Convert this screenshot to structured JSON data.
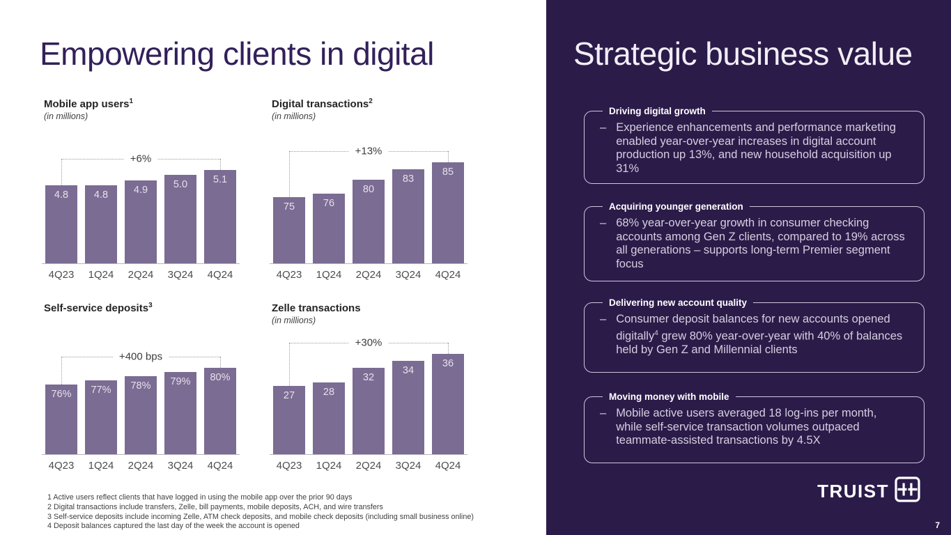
{
  "slide": {
    "left_title": "Empowering clients in digital",
    "right_title": "Strategic business value",
    "logo_text": "TRUIST",
    "page_number": "7"
  },
  "colors": {
    "panel_bg": "#2b1b49",
    "bar": "#7b6c93",
    "left_title": "#32205a",
    "box_border": "#cfc6dd",
    "box_text": "#d5cfdf",
    "bar_label": "#e6e0ec"
  },
  "chart_data": [
    {
      "type": "bar",
      "title": "Mobile app users",
      "title_sup": "1",
      "subtitle": "(in millions)",
      "annotation": "+6%",
      "categories": [
        "4Q23",
        "1Q24",
        "2Q24",
        "3Q24",
        "4Q24"
      ],
      "values": [
        4.8,
        4.8,
        4.9,
        5.0,
        5.1
      ],
      "value_labels": [
        "4.8",
        "4.8",
        "4.9",
        "5.0",
        "5.1"
      ],
      "ylim": [
        0,
        5.5
      ],
      "axis_truncated": true
    },
    {
      "type": "bar",
      "title": "Digital transactions",
      "title_sup": "2",
      "subtitle": "(in millions)",
      "annotation": "+13%",
      "categories": [
        "4Q23",
        "1Q24",
        "2Q24",
        "3Q24",
        "4Q24"
      ],
      "values": [
        75,
        76,
        80,
        83,
        85
      ],
      "value_labels": [
        "75",
        "76",
        "80",
        "83",
        "85"
      ],
      "ylim": [
        0,
        90
      ],
      "axis_truncated": true
    },
    {
      "type": "bar",
      "title": "Self-service deposits",
      "title_sup": "3",
      "subtitle": "",
      "annotation": "+400 bps",
      "categories": [
        "4Q23",
        "1Q24",
        "2Q24",
        "3Q24",
        "4Q24"
      ],
      "values": [
        76,
        77,
        78,
        79,
        80
      ],
      "value_labels": [
        "76%",
        "77%",
        "78%",
        "79%",
        "80%"
      ],
      "ylim": [
        0,
        85
      ],
      "axis_truncated": true
    },
    {
      "type": "bar",
      "title": "Zelle transactions",
      "title_sup": "",
      "subtitle": "(in millions)",
      "annotation": "+30%",
      "categories": [
        "4Q23",
        "1Q24",
        "2Q24",
        "3Q24",
        "4Q24"
      ],
      "values": [
        27,
        28,
        32,
        34,
        36
      ],
      "value_labels": [
        "27",
        "28",
        "32",
        "34",
        "36"
      ],
      "ylim": [
        0,
        40
      ],
      "axis_truncated": true
    }
  ],
  "panel": {
    "bullet": "–",
    "boxes": [
      {
        "title": "Driving digital growth",
        "body": [
          {
            "t": "Experience enhancements and performance marketing enabled year-over-year increases in digital account production up 13%, and new household acquisition up 31%"
          }
        ]
      },
      {
        "title": "Acquiring younger generation",
        "body": [
          {
            "t": "68% year-over-year growth in consumer checking accounts among Gen Z clients, compared to 19% across all generations – supports long-term Premier segment focus"
          }
        ]
      },
      {
        "title": "Delivering new account quality",
        "body": [
          {
            "t": "Consumer deposit balances for new accounts opened digitally"
          },
          {
            "sup": "4"
          },
          {
            "t": " grew 80% year-over-year with 40% of balances held by Gen Z and Millennial clients"
          }
        ]
      },
      {
        "title": "Moving money with mobile",
        "body": [
          {
            "t": "Mobile active users averaged 18 log-ins per month, while self-service transaction volumes outpaced teammate-assisted transactions by 4.5X"
          }
        ]
      }
    ]
  },
  "footnotes": [
    "1 Active users reflect clients that have logged in using the mobile app over the prior 90 days",
    "2 Digital transactions include transfers, Zelle, bill payments, mobile deposits, ACH, and wire transfers",
    "3 Self-service deposits include incoming Zelle, ATM check deposits, and mobile check deposits (including small business online)",
    "4 Deposit balances captured the last day of the week the account is opened"
  ]
}
